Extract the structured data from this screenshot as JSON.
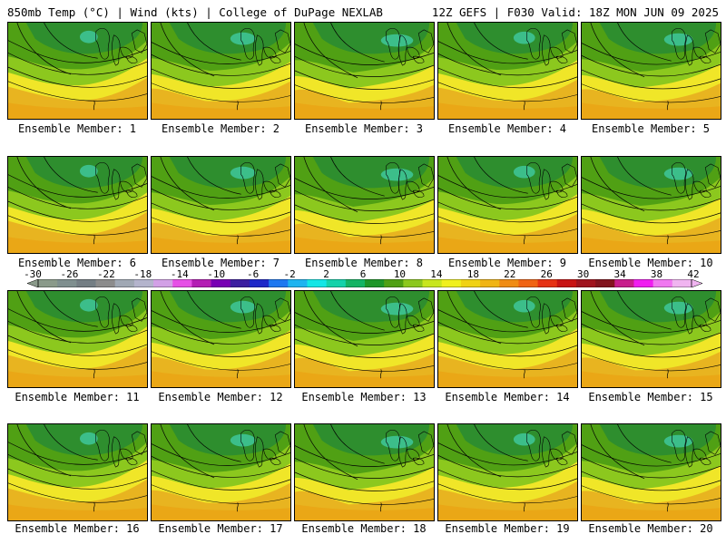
{
  "header": {
    "title_left": "850mb Temp (°C) | Wind (kts) | College of DuPage NEXLAB",
    "title_right": "12Z GEFS | F030 Valid: 18Z MON JUN 09 2025"
  },
  "panels": [
    {
      "label": "Ensemble Member: 1"
    },
    {
      "label": "Ensemble Member: 2"
    },
    {
      "label": "Ensemble Member: 3"
    },
    {
      "label": "Ensemble Member: 4"
    },
    {
      "label": "Ensemble Member: 5"
    },
    {
      "label": "Ensemble Member: 6"
    },
    {
      "label": "Ensemble Member: 7"
    },
    {
      "label": "Ensemble Member: 8"
    },
    {
      "label": "Ensemble Member: 9"
    },
    {
      "label": "Ensemble Member: 10"
    },
    {
      "label": "Ensemble Member: 11"
    },
    {
      "label": "Ensemble Member: 12"
    },
    {
      "label": "Ensemble Member: 13"
    },
    {
      "label": "Ensemble Member: 14"
    },
    {
      "label": "Ensemble Member: 15"
    },
    {
      "label": "Ensemble Member: 16"
    },
    {
      "label": "Ensemble Member: 17"
    },
    {
      "label": "Ensemble Member: 18"
    },
    {
      "label": "Ensemble Member: 19"
    },
    {
      "label": "Ensemble Member: 20"
    }
  ],
  "colorbar": {
    "labels": [
      "-30",
      "-26",
      "-22",
      "-18",
      "-14",
      "-10",
      "-6",
      "-2",
      "2",
      "6",
      "10",
      "14",
      "18",
      "22",
      "26",
      "30",
      "34",
      "38",
      "42"
    ],
    "colors": [
      "#8a9a8a",
      "#7f8f8f",
      "#747e84",
      "#8c8c8c",
      "#a0a8b4",
      "#b4b4cc",
      "#d2a0e6",
      "#e650e6",
      "#b41eb4",
      "#7800b4",
      "#3c1ea0",
      "#1e28c8",
      "#1e78f0",
      "#1eb4f0",
      "#14e6e6",
      "#14d2aa",
      "#14b464",
      "#1e9628",
      "#50a014",
      "#8cc81e",
      "#c8e61e",
      "#f0f01e",
      "#f0d214",
      "#f0b414",
      "#f08c14",
      "#f06414",
      "#e63214",
      "#c81414",
      "#a0141e",
      "#82141e",
      "#c81e8c",
      "#f01ef0",
      "#f078f0",
      "#f0b4f0"
    ]
  }
}
